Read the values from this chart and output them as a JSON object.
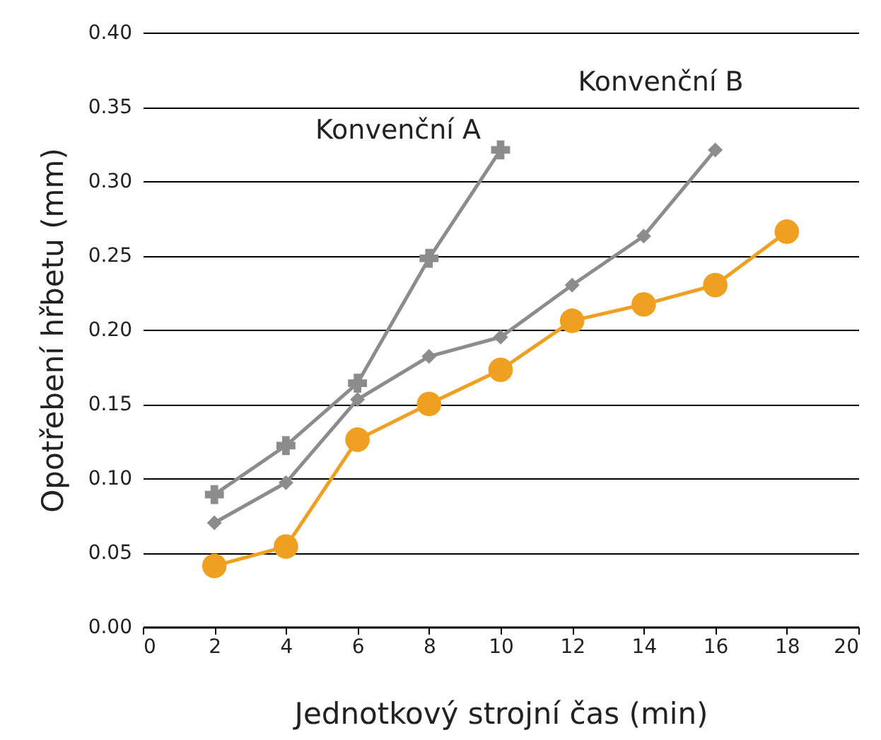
{
  "chart_data": {
    "type": "line",
    "xlabel": "Jednotkový strojní čas (min)",
    "ylabel": "Opotřebení hřbetu (mm)",
    "xlim": [
      0,
      20
    ],
    "xticks": [
      0,
      2,
      4,
      6,
      8,
      10,
      12,
      14,
      16,
      18,
      20
    ],
    "ylim": [
      0,
      0.4
    ],
    "yticks": [
      {
        "value": 0,
        "label": "0.00"
      },
      {
        "value": 0.05,
        "label": "0.05"
      },
      {
        "value": 0.1,
        "label": "0.10"
      },
      {
        "value": 0.15,
        "label": "0.15"
      },
      {
        "value": 0.2,
        "label": "0.20"
      },
      {
        "value": 0.25,
        "label": "0.25"
      },
      {
        "value": 0.3,
        "label": "0.30"
      },
      {
        "value": 0.35,
        "label": "0.35"
      },
      {
        "value": 0.4,
        "label": "0.40"
      }
    ],
    "grid": "y",
    "series": [
      {
        "name": "Konvenční A",
        "color": "#8c8c8c",
        "marker": "cross",
        "x": [
          2,
          4,
          6,
          8,
          10
        ],
        "values": [
          0.089,
          0.122,
          0.164,
          0.248,
          0.321
        ]
      },
      {
        "name": "Konvenční B",
        "color": "#8c8c8c",
        "marker": "diamond",
        "x": [
          2,
          4,
          6,
          8,
          10,
          12,
          14,
          16
        ],
        "values": [
          0.07,
          0.097,
          0.153,
          0.182,
          0.195,
          0.23,
          0.263,
          0.321
        ]
      },
      {
        "color": "#f0a020",
        "marker": "circle",
        "x": [
          2,
          4,
          6,
          8,
          10,
          12,
          14,
          16,
          18
        ],
        "values": [
          0.041,
          0.054,
          0.126,
          0.15,
          0.173,
          0.206,
          0.217,
          0.23,
          0.266
        ]
      }
    ]
  }
}
